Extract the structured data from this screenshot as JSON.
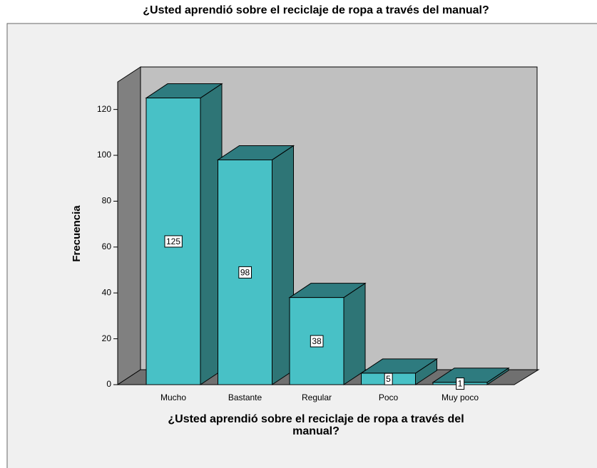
{
  "chart_data": {
    "type": "bar3d",
    "title": "¿Usted aprendió sobre el reciclaje de ropa a través del manual?",
    "x_label": "¿Usted aprendió sobre el reciclaje de ropa a través del manual?",
    "y_label": "Frecuencia",
    "categories": [
      "Mucho",
      "Bastante",
      "Regular",
      "Poco",
      "Muy poco"
    ],
    "values": [
      125,
      98,
      38,
      5,
      1
    ],
    "color": "#48c1c6",
    "ylim": [
      0,
      132
    ],
    "yticks": [
      0,
      20,
      40,
      60,
      80,
      100,
      120
    ]
  }
}
